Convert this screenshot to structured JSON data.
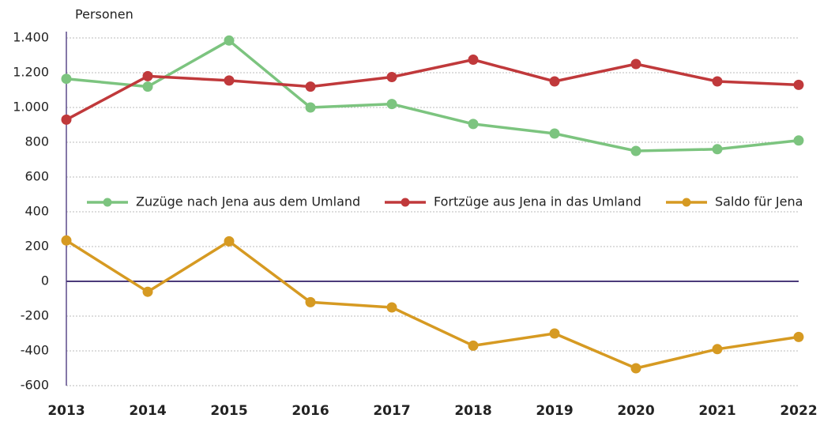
{
  "chart_data": {
    "type": "line",
    "y_axis_label": "Personen",
    "categories": [
      "2013",
      "2014",
      "2015",
      "2016",
      "2017",
      "2018",
      "2019",
      "2020",
      "2021",
      "2022"
    ],
    "series": [
      {
        "name": "Zuzüge nach Jena aus dem Umland",
        "color": "#7cc47f",
        "values": [
          1165,
          1120,
          1385,
          1000,
          1020,
          905,
          850,
          750,
          760,
          810
        ]
      },
      {
        "name": "Fortzüge aus Jena in das Umland",
        "color": "#c0393b",
        "values": [
          930,
          1180,
          1155,
          1120,
          1175,
          1275,
          1150,
          1250,
          1150,
          1130
        ]
      },
      {
        "name": "Saldo für Jena",
        "color": "#d69a22",
        "values": [
          235,
          -60,
          230,
          -120,
          -150,
          -370,
          -300,
          -500,
          -390,
          -320
        ]
      }
    ],
    "ylim": [
      -600,
      1400
    ],
    "yticks": [
      {
        "value": 1400,
        "label": "1.400"
      },
      {
        "value": 1200,
        "label": "1.200"
      },
      {
        "value": 1000,
        "label": "1.000"
      },
      800,
      600,
      400,
      200,
      0,
      -200,
      -400,
      -600
    ],
    "grid": true,
    "legend": "center"
  }
}
